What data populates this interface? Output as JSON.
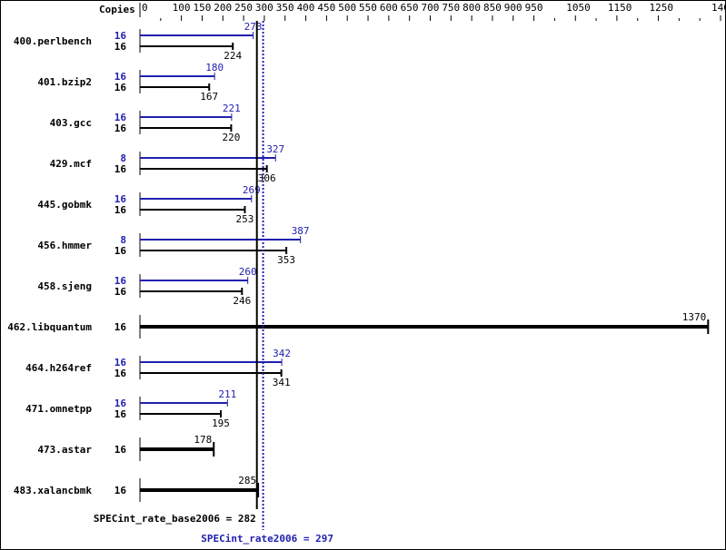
{
  "chart_data": {
    "type": "bar",
    "orientation": "horizontal",
    "copies_label": "Copies",
    "xlim": [
      0,
      1400
    ],
    "tick_labels": [
      0,
      100,
      150,
      200,
      250,
      300,
      350,
      400,
      450,
      500,
      550,
      600,
      650,
      700,
      750,
      800,
      850,
      900,
      950,
      1050,
      1150,
      1250,
      1400
    ],
    "colors": {
      "base": "#000000",
      "peak": "#2020b0"
    },
    "benchmarks": [
      {
        "name": "400.perlbench",
        "peak_copies": "16",
        "peak": 273,
        "base_copies": "16",
        "base": 224
      },
      {
        "name": "401.bzip2",
        "peak_copies": "16",
        "peak": 180,
        "base_copies": "16",
        "base": 167
      },
      {
        "name": "403.gcc",
        "peak_copies": "16",
        "peak": 221,
        "base_copies": "16",
        "base": 220
      },
      {
        "name": "429.mcf",
        "peak_copies": "8",
        "peak": 327,
        "base_copies": "16",
        "base": 306
      },
      {
        "name": "445.gobmk",
        "peak_copies": "16",
        "peak": 269,
        "base_copies": "16",
        "base": 253
      },
      {
        "name": "456.hmmer",
        "peak_copies": "8",
        "peak": 387,
        "base_copies": "16",
        "base": 353
      },
      {
        "name": "458.sjeng",
        "peak_copies": "16",
        "peak": 260,
        "base_copies": "16",
        "base": 246
      },
      {
        "name": "462.libquantum",
        "peak_copies": null,
        "peak": null,
        "base_copies": "16",
        "base": 1370
      },
      {
        "name": "464.h264ref",
        "peak_copies": "16",
        "peak": 342,
        "base_copies": "16",
        "base": 341
      },
      {
        "name": "471.omnetpp",
        "peak_copies": "16",
        "peak": 211,
        "base_copies": "16",
        "base": 195
      },
      {
        "name": "473.astar",
        "peak_copies": null,
        "peak": null,
        "base_copies": "16",
        "base": 178
      },
      {
        "name": "483.xalancbmk",
        "peak_copies": null,
        "peak": null,
        "base_copies": "16",
        "base": 285
      }
    ],
    "base_summary": {
      "label": "SPECint_rate_base2006 = 282",
      "value": 282
    },
    "peak_summary": {
      "label": "SPECint_rate2006 = 297",
      "value": 297
    }
  }
}
